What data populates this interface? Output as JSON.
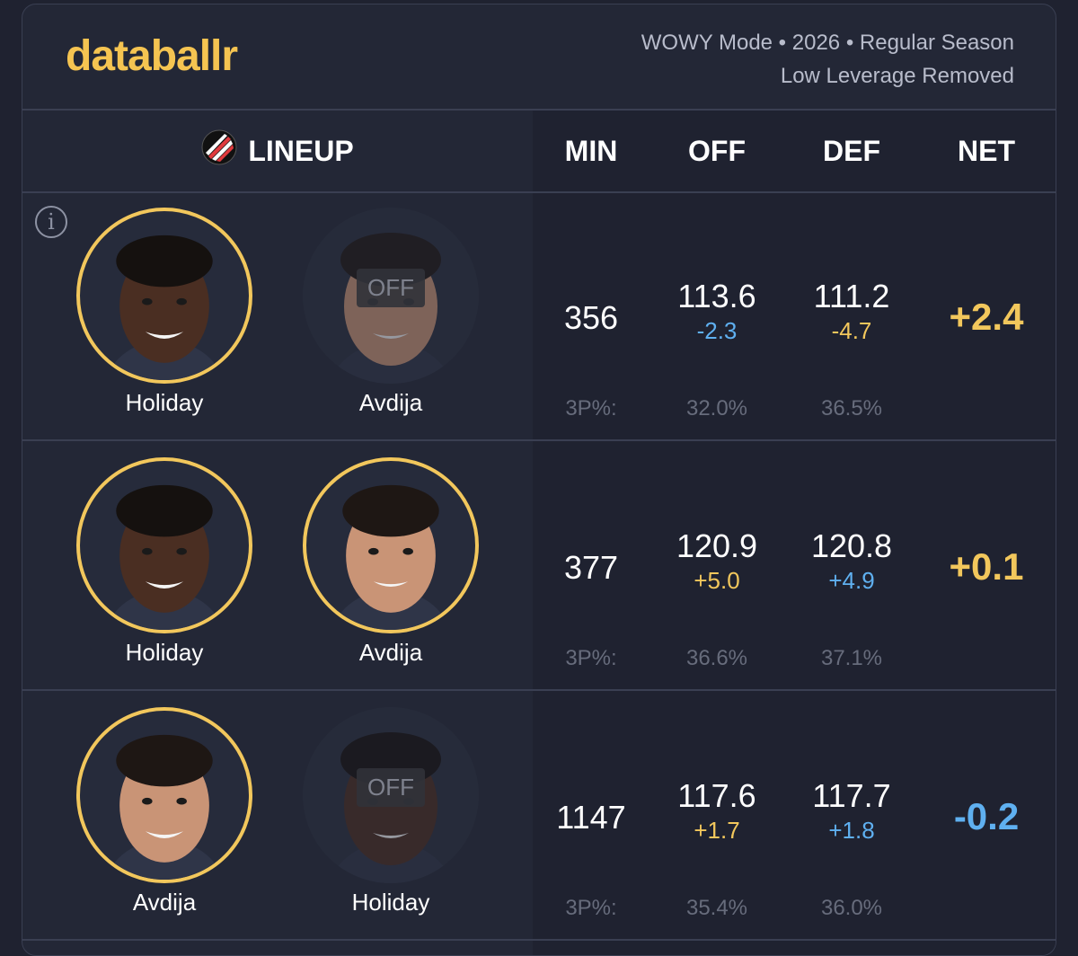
{
  "header": {
    "logo": "databallr",
    "meta_line1": "WOWY Mode • 2026 • Regular Season",
    "meta_line2": "Low Leverage Removed"
  },
  "columns": {
    "lineup": "LINEUP",
    "min": "MIN",
    "off": "OFF",
    "def": "DEF",
    "net": "NET"
  },
  "team_logo_icon": "trail-blazers-pinwheel-icon",
  "info_icon": "info-icon",
  "off_label": "OFF",
  "tp_label": "3P%:",
  "colors": {
    "accent": "#f2c75c",
    "blue": "#5fb0f0",
    "background": "#1f2230"
  },
  "rows": [
    {
      "players": [
        {
          "name": "Holiday",
          "status": "on"
        },
        {
          "name": "Avdija",
          "status": "off"
        }
      ],
      "min": "356",
      "off": "113.6",
      "off_delta": "-2.3",
      "def": "111.2",
      "def_delta": "-4.7",
      "net": "+2.4",
      "tp_off": "32.0%",
      "tp_def": "36.5%"
    },
    {
      "players": [
        {
          "name": "Holiday",
          "status": "on"
        },
        {
          "name": "Avdija",
          "status": "on"
        }
      ],
      "min": "377",
      "off": "120.9",
      "off_delta": "+5.0",
      "def": "120.8",
      "def_delta": "+4.9",
      "net": "+0.1",
      "tp_off": "36.6%",
      "tp_def": "37.1%"
    },
    {
      "players": [
        {
          "name": "Avdija",
          "status": "on"
        },
        {
          "name": "Holiday",
          "status": "off"
        }
      ],
      "min": "1147",
      "off": "117.6",
      "off_delta": "+1.7",
      "def": "117.7",
      "def_delta": "+1.8",
      "net": "-0.2",
      "tp_off": "35.4%",
      "tp_def": "36.0%"
    }
  ]
}
